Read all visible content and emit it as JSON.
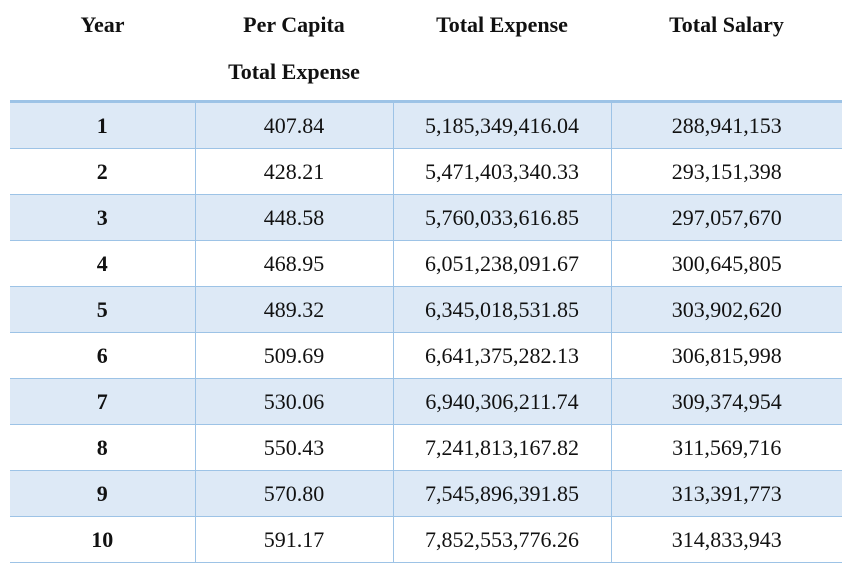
{
  "headers": {
    "year": "Year",
    "per_capita_line1": "Per Capita",
    "per_capita_line2": "Total Expense",
    "total_expense": "Total Expense",
    "total_salary": "Total Salary"
  },
  "rows": [
    {
      "year": "1",
      "per_capita": "407.84",
      "total_expense": "5,185,349,416.04",
      "total_salary": "288,941,153"
    },
    {
      "year": "2",
      "per_capita": "428.21",
      "total_expense": "5,471,403,340.33",
      "total_salary": "293,151,398"
    },
    {
      "year": "3",
      "per_capita": "448.58",
      "total_expense": "5,760,033,616.85",
      "total_salary": "297,057,670"
    },
    {
      "year": "4",
      "per_capita": "468.95",
      "total_expense": "6,051,238,091.67",
      "total_salary": "300,645,805"
    },
    {
      "year": "5",
      "per_capita": "489.32",
      "total_expense": "6,345,018,531.85",
      "total_salary": "303,902,620"
    },
    {
      "year": "6",
      "per_capita": "509.69",
      "total_expense": "6,641,375,282.13",
      "total_salary": "306,815,998"
    },
    {
      "year": "7",
      "per_capita": "530.06",
      "total_expense": "6,940,306,211.74",
      "total_salary": "309,374,954"
    },
    {
      "year": "8",
      "per_capita": "550.43",
      "total_expense": "7,241,813,167.82",
      "total_salary": "311,569,716"
    },
    {
      "year": "9",
      "per_capita": "570.80",
      "total_expense": "7,545,896,391.85",
      "total_salary": "313,391,773"
    },
    {
      "year": "10",
      "per_capita": "591.17",
      "total_expense": "7,852,553,776.26",
      "total_salary": "314,833,943"
    }
  ],
  "colors": {
    "band": "#dde9f6",
    "rule": "#9dc3e6"
  }
}
